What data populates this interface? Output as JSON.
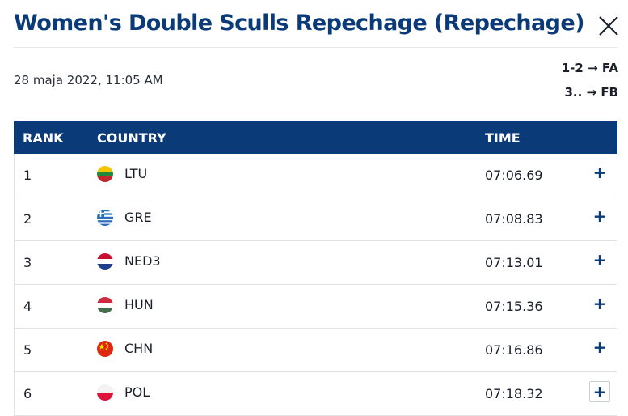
{
  "header": {
    "title": "Women's Double Sculls Repechage (Repechage)",
    "date": "28 maja 2022, 11:05 AM",
    "qualification": [
      "1-2 → FA",
      "3.. → FB"
    ]
  },
  "table": {
    "columns": {
      "rank": "RANK",
      "country": "COUNTRY",
      "time": "TIME"
    },
    "rows": [
      {
        "rank": "1",
        "country": "LTU",
        "time": "07:06.69",
        "expand": "+",
        "flag": "lithuania-flag-icon"
      },
      {
        "rank": "2",
        "country": "GRE",
        "time": "07:08.83",
        "expand": "+",
        "flag": "greece-flag-icon"
      },
      {
        "rank": "3",
        "country": "NED3",
        "time": "07:13.01",
        "expand": "+",
        "flag": "netherlands-flag-icon"
      },
      {
        "rank": "4",
        "country": "HUN",
        "time": "07:15.36",
        "expand": "+",
        "flag": "hungary-flag-icon"
      },
      {
        "rank": "5",
        "country": "CHN",
        "time": "07:16.86",
        "expand": "+",
        "flag": "china-flag-icon"
      },
      {
        "rank": "6",
        "country": "POL",
        "time": "07:18.32",
        "expand": "+",
        "flag": "poland-flag-icon"
      }
    ]
  },
  "colors": {
    "brand": "#0b3a78",
    "row_border": "#dfe2e6"
  }
}
